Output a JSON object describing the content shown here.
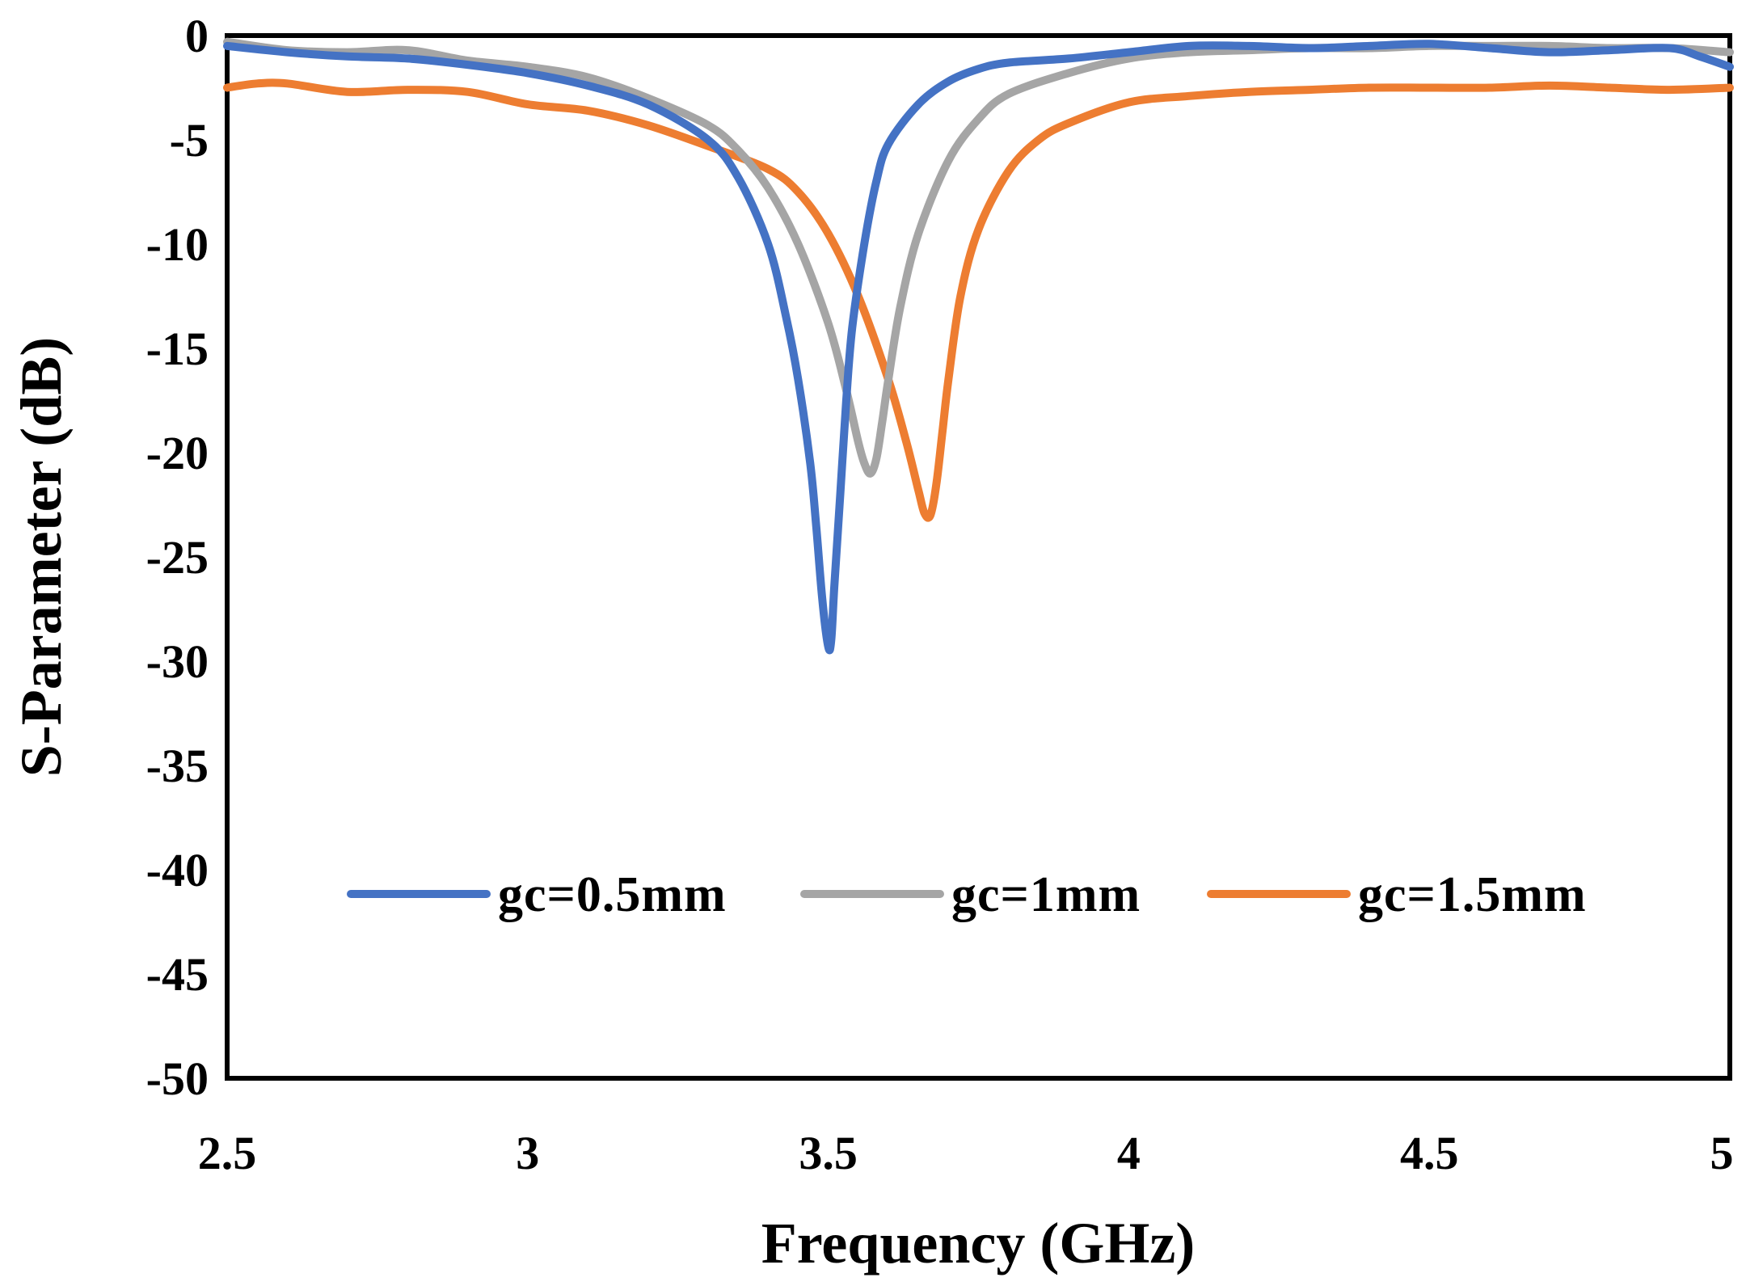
{
  "chart_data": {
    "type": "line",
    "title": "",
    "xlabel": "Frequency (GHz)",
    "ylabel": "S-Parameter (dB)",
    "xlim": [
      2.5,
      5
    ],
    "ylim": [
      -50,
      0
    ],
    "x_ticks": [
      2.5,
      3,
      3.5,
      4,
      4.5,
      5
    ],
    "x_tick_labels": [
      "2.5",
      "3",
      "3.5",
      "4",
      "4.5",
      "5"
    ],
    "y_ticks": [
      0,
      -5,
      -10,
      -15,
      -20,
      -25,
      -30,
      -35,
      -40,
      -45,
      -50
    ],
    "y_tick_labels": [
      "0",
      "-5",
      "-10",
      "-15",
      "-20",
      "-25",
      "-30",
      "-35",
      "-40",
      "-45",
      "-50"
    ],
    "grid": false,
    "legend_position": "lower-center",
    "series": [
      {
        "name": "gc=0.5mm",
        "color": "#4472C4",
        "x": [
          2.5,
          2.6,
          2.7,
          2.8,
          2.9,
          3.0,
          3.1,
          3.2,
          3.3,
          3.35,
          3.4,
          3.43,
          3.45,
          3.47,
          3.48,
          3.49,
          3.5,
          3.505,
          3.51,
          3.52,
          3.53,
          3.54,
          3.56,
          3.58,
          3.6,
          3.65,
          3.7,
          3.75,
          3.8,
          3.9,
          4.0,
          4.1,
          4.2,
          4.3,
          4.4,
          4.5,
          4.6,
          4.7,
          4.8,
          4.9,
          4.95,
          5.0
        ],
        "y": [
          -0.5,
          -0.8,
          -1.0,
          -1.1,
          -1.4,
          -1.8,
          -2.4,
          -3.3,
          -5.0,
          -6.8,
          -10.0,
          -13.5,
          -16.5,
          -20.5,
          -23.5,
          -27.0,
          -29.3,
          -29.0,
          -26.5,
          -22.0,
          -17.5,
          -14.0,
          -10.0,
          -7.0,
          -5.2,
          -3.3,
          -2.2,
          -1.6,
          -1.3,
          -1.1,
          -0.8,
          -0.5,
          -0.5,
          -0.6,
          -0.5,
          -0.4,
          -0.6,
          -0.8,
          -0.7,
          -0.6,
          -1.0,
          -1.5
        ]
      },
      {
        "name": "gc=1mm",
        "color": "#A5A5A5",
        "x": [
          2.5,
          2.6,
          2.7,
          2.8,
          2.9,
          3.0,
          3.1,
          3.2,
          3.3,
          3.35,
          3.4,
          3.45,
          3.5,
          3.53,
          3.55,
          3.56,
          3.57,
          3.58,
          3.59,
          3.6,
          3.62,
          3.65,
          3.7,
          3.75,
          3.8,
          3.9,
          4.0,
          4.1,
          4.2,
          4.3,
          4.4,
          4.5,
          4.6,
          4.7,
          4.8,
          4.9,
          5.0
        ],
        "y": [
          -0.3,
          -0.7,
          -0.8,
          -0.7,
          -1.2,
          -1.5,
          -2.0,
          -3.0,
          -4.3,
          -5.5,
          -7.3,
          -10.0,
          -13.8,
          -17.0,
          -19.5,
          -20.5,
          -21.0,
          -20.3,
          -18.5,
          -16.5,
          -13.0,
          -9.5,
          -6.0,
          -4.0,
          -2.8,
          -1.8,
          -1.1,
          -0.8,
          -0.7,
          -0.6,
          -0.6,
          -0.5,
          -0.5,
          -0.5,
          -0.6,
          -0.6,
          -0.8
        ]
      },
      {
        "name": "gc=1.5mm",
        "color": "#ED7D31",
        "x": [
          2.5,
          2.55,
          2.6,
          2.7,
          2.8,
          2.9,
          3.0,
          3.1,
          3.2,
          3.3,
          3.4,
          3.45,
          3.5,
          3.55,
          3.6,
          3.63,
          3.65,
          3.66,
          3.67,
          3.68,
          3.69,
          3.7,
          3.72,
          3.75,
          3.8,
          3.85,
          3.9,
          4.0,
          4.1,
          4.2,
          4.3,
          4.4,
          4.5,
          4.6,
          4.7,
          4.8,
          4.9,
          5.0
        ],
        "y": [
          -2.5,
          -2.3,
          -2.3,
          -2.7,
          -2.6,
          -2.7,
          -3.3,
          -3.6,
          -4.3,
          -5.3,
          -6.4,
          -7.5,
          -9.5,
          -12.5,
          -16.5,
          -19.5,
          -21.8,
          -22.9,
          -23.0,
          -21.5,
          -19.0,
          -16.5,
          -12.5,
          -9.3,
          -6.5,
          -5.0,
          -4.2,
          -3.2,
          -2.9,
          -2.7,
          -2.6,
          -2.5,
          -2.5,
          -2.5,
          -2.4,
          -2.5,
          -2.6,
          -2.5
        ]
      }
    ]
  }
}
